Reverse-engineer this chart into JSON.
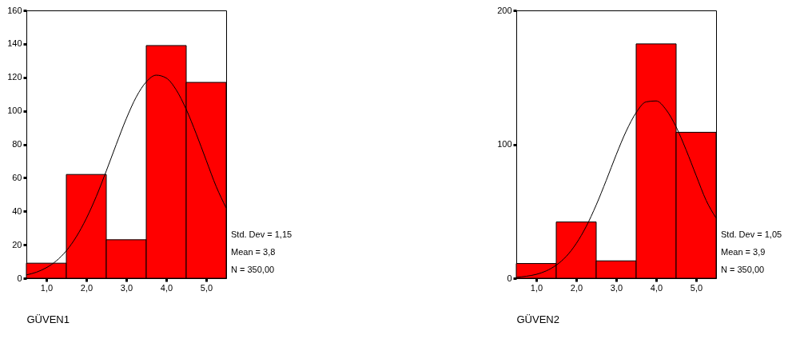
{
  "chart_data": [
    {
      "type": "histogram",
      "xlabel": "GÜVEN1",
      "bins": [
        0.5,
        1.5,
        2.5,
        3.5,
        4.5,
        5.5
      ],
      "grid": false,
      "legend": false,
      "series": [
        {
          "type": "histogram",
          "color": "#ff0000",
          "values": [
            9,
            62,
            23,
            139,
            117
          ]
        },
        {
          "type": "line",
          "color": "#000000",
          "x": [
            0.5,
            0.75,
            1.0,
            1.25,
            1.5,
            1.75,
            2.0,
            2.25,
            2.5,
            2.75,
            3.0,
            3.25,
            3.5,
            3.75,
            4.0,
            4.25,
            4.5,
            4.75,
            5.0,
            5.25,
            5.5
          ],
          "values": [
            2.0,
            3.6,
            6.3,
            10.4,
            16.4,
            24.8,
            35.7,
            48.9,
            64.1,
            80.0,
            95.3,
            108.3,
            117.3,
            121.3,
            119.6,
            112.5,
            100.9,
            86.3,
            70.5,
            54.8,
            42
          ]
        }
      ],
      "xlim": [
        0.5,
        5.5
      ],
      "xticks": [
        {
          "value": 1,
          "label": "1,0"
        },
        {
          "value": 2,
          "label": "2,0"
        },
        {
          "value": 3,
          "label": "3,0"
        },
        {
          "value": 4,
          "label": "4,0"
        },
        {
          "value": 5,
          "label": "5,0"
        }
      ],
      "ylim": [
        0,
        160
      ],
      "yticks": [
        0,
        20,
        40,
        60,
        80,
        100,
        120,
        140,
        160
      ],
      "annotations": [
        "Std. Dev = 1,15",
        "Mean = 3,8",
        "N = 350,00"
      ]
    },
    {
      "type": "histogram",
      "xlabel": "GÜVEN2",
      "bins": [
        0.5,
        1.5,
        2.5,
        3.5,
        4.5,
        5.5
      ],
      "grid": false,
      "legend": false,
      "series": [
        {
          "type": "histogram",
          "color": "#ff0000",
          "values": [
            11,
            42,
            13,
            175,
            109
          ]
        },
        {
          "type": "line",
          "color": "#000000",
          "x": [
            0.5,
            0.75,
            1.0,
            1.25,
            1.5,
            1.75,
            2.0,
            2.25,
            2.5,
            2.75,
            3.0,
            3.25,
            3.5,
            3.75,
            4.0,
            4.25,
            4.5,
            4.75,
            5.0,
            5.25,
            5.5
          ],
          "values": [
            0.7,
            1.5,
            2.9,
            5.5,
            9.8,
            16.3,
            25.9,
            38.7,
            54.7,
            73.0,
            92.2,
            109.8,
            123.7,
            131.7,
            132.4,
            125.8,
            113.0,
            95.8,
            76.8,
            58.2,
            45
          ]
        }
      ],
      "xlim": [
        0.5,
        5.5
      ],
      "xticks": [
        {
          "value": 1,
          "label": "1,0"
        },
        {
          "value": 2,
          "label": "2,0"
        },
        {
          "value": 3,
          "label": "3,0"
        },
        {
          "value": 4,
          "label": "4,0"
        },
        {
          "value": 5,
          "label": "5,0"
        }
      ],
      "ylim": [
        0,
        200
      ],
      "yticks": [
        0,
        100,
        200
      ],
      "annotations": [
        "Std. Dev = 1,05",
        "Mean = 3,9",
        "N = 350,00"
      ]
    }
  ]
}
